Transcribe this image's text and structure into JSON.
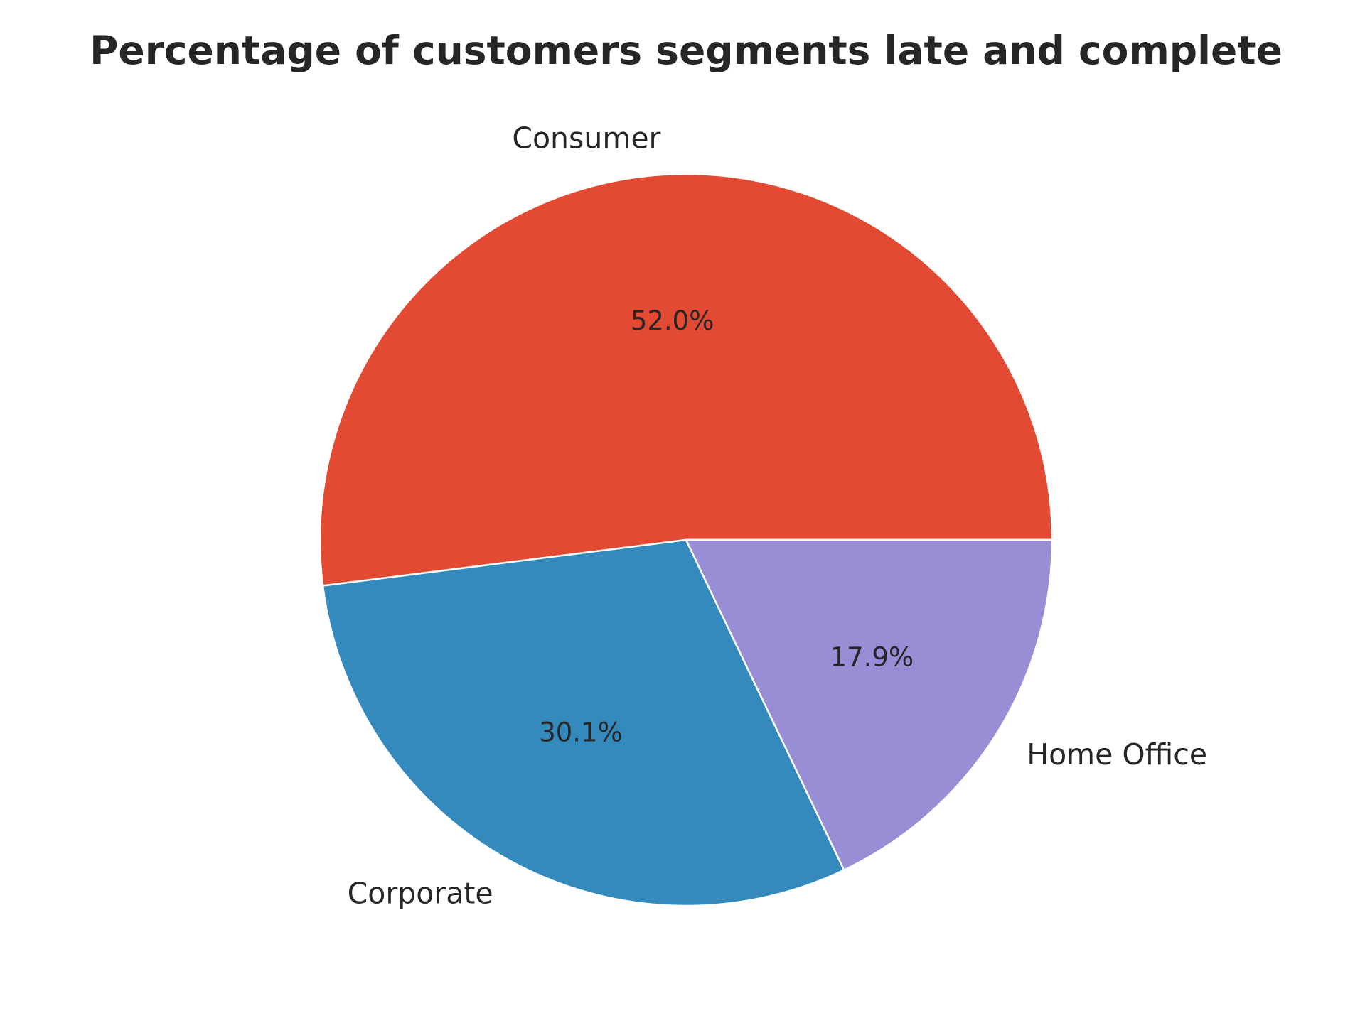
{
  "chart_data": {
    "type": "pie",
    "title": "Percentage of customers segments late and complete",
    "start_angle_deg": 0,
    "direction": "counterclockwise",
    "slices": [
      {
        "label": "Consumer",
        "value": 52.0,
        "pct_label": "52.0%",
        "color": "#E24A33"
      },
      {
        "label": "Corporate",
        "value": 30.1,
        "pct_label": "30.1%",
        "color": "#348ABD"
      },
      {
        "label": "Home Office",
        "value": 17.9,
        "pct_label": "17.9%",
        "color": "#988ED5"
      }
    ]
  }
}
